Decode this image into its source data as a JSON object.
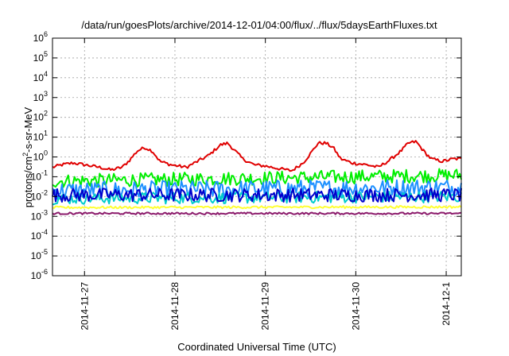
{
  "chart_data": {
    "type": "line",
    "title": "/data/run/goesPlots/archive/2014-12-01/04:00/flux/../flux/5daysEarthFluxes.txt",
    "xlabel": "Coordinated Universal Time (UTC)",
    "ylabel_parts": {
      "base": "protons/cm",
      "exp": "2",
      "rest": "-s-sr-MeV"
    },
    "yscale": "log",
    "ylim_exp": [
      -6,
      6
    ],
    "y_ticks": [
      {
        "base": "10",
        "exp": "-6"
      },
      {
        "base": "10",
        "exp": "-5"
      },
      {
        "base": "10",
        "exp": "-4"
      },
      {
        "base": "10",
        "exp": "-3"
      },
      {
        "base": "10",
        "exp": "-2"
      },
      {
        "base": "10",
        "exp": "-1"
      },
      {
        "base": "10",
        "exp": "0"
      },
      {
        "base": "10",
        "exp": "1"
      },
      {
        "base": "10",
        "exp": "2"
      },
      {
        "base": "10",
        "exp": "3"
      },
      {
        "base": "10",
        "exp": "4"
      },
      {
        "base": "10",
        "exp": "5"
      },
      {
        "base": "10",
        "exp": "6"
      }
    ],
    "x_range": [
      "2014-11-26T15:30",
      "2014-12-01T04:00"
    ],
    "x_ticks": [
      {
        "label": "2014-11-27",
        "value": "2014-11-27T00:00"
      },
      {
        "label": "2014-11-28",
        "value": "2014-11-28T00:00"
      },
      {
        "label": "2014-11-29",
        "value": "2014-11-29T00:00"
      },
      {
        "label": "2014-11-30",
        "value": "2014-11-30T00:00"
      },
      {
        "label": "2014-12-1",
        "value": "2014-12-01T00:00"
      }
    ],
    "grid": true,
    "series": [
      {
        "color": "#e00000",
        "base": [
          [
            "2014-11-26T15:30",
            0.3
          ],
          [
            "2014-11-26T18:00",
            0.4
          ],
          [
            "2014-11-26T21:00",
            0.5
          ],
          [
            "2014-11-27T00:00",
            0.4
          ],
          [
            "2014-11-27T04:00",
            0.3
          ],
          [
            "2014-11-27T07:00",
            0.22
          ],
          [
            "2014-11-27T10:00",
            0.3
          ],
          [
            "2014-11-27T12:00",
            0.7
          ],
          [
            "2014-11-27T14:00",
            2.0
          ],
          [
            "2014-11-27T16:00",
            3.0
          ],
          [
            "2014-11-27T18:00",
            2.0
          ],
          [
            "2014-11-27T20:00",
            0.6
          ],
          [
            "2014-11-27T23:00",
            0.4
          ],
          [
            "2014-11-28T03:00",
            0.3
          ],
          [
            "2014-11-28T06:00",
            0.6
          ],
          [
            "2014-11-28T09:00",
            1.2
          ],
          [
            "2014-11-28T12:00",
            4.0
          ],
          [
            "2014-11-28T14:00",
            5.0
          ],
          [
            "2014-11-28T16:00",
            2.0
          ],
          [
            "2014-11-28T18:00",
            0.8
          ],
          [
            "2014-11-28T21:00",
            0.4
          ],
          [
            "2014-11-29T00:00",
            0.35
          ],
          [
            "2014-11-29T04:00",
            0.25
          ],
          [
            "2014-11-29T07:00",
            0.2
          ],
          [
            "2014-11-29T10:00",
            0.5
          ],
          [
            "2014-11-29T12:00",
            1.5
          ],
          [
            "2014-11-29T14:00",
            5.0
          ],
          [
            "2014-11-29T16:00",
            5.0
          ],
          [
            "2014-11-29T18:00",
            3.0
          ],
          [
            "2014-11-29T20:00",
            0.8
          ],
          [
            "2014-11-29T23:00",
            0.5
          ],
          [
            "2014-11-30T03:00",
            0.4
          ],
          [
            "2014-11-30T06:00",
            0.3
          ],
          [
            "2014-11-30T09:00",
            0.7
          ],
          [
            "2014-11-30T12:00",
            2.0
          ],
          [
            "2014-11-30T14:00",
            5.0
          ],
          [
            "2014-11-30T16:00",
            6.0
          ],
          [
            "2014-11-30T18:00",
            2.0
          ],
          [
            "2014-11-30T20:00",
            0.8
          ],
          [
            "2014-11-30T23:00",
            0.6
          ],
          [
            "2014-12-01T02:00",
            0.8
          ],
          [
            "2014-12-01T04:00",
            0.8
          ]
        ],
        "jitter": 0.08
      },
      {
        "color": "#00ee00",
        "base": [
          [
            "2014-11-26T15:30",
            0.06
          ],
          [
            "2014-11-28T12:00",
            0.08
          ],
          [
            "2014-12-01T04:00",
            0.12
          ]
        ],
        "jitter": 0.35
      },
      {
        "color": "#1e90ff",
        "base": [
          [
            "2014-11-26T15:30",
            0.02
          ],
          [
            "2014-12-01T04:00",
            0.03
          ]
        ],
        "jitter": 0.45
      },
      {
        "color": "#00cccc",
        "base": [
          [
            "2014-11-26T15:30",
            0.008
          ],
          [
            "2014-12-01T04:00",
            0.01
          ]
        ],
        "jitter": 0.3
      },
      {
        "color": "#0000cc",
        "base": [
          [
            "2014-11-26T15:30",
            0.012
          ],
          [
            "2014-12-01T04:00",
            0.012
          ]
        ],
        "jitter": 0.35
      },
      {
        "color": "#ffff33",
        "base": [
          [
            "2014-11-26T15:30",
            0.0028
          ],
          [
            "2014-12-01T04:00",
            0.003
          ]
        ],
        "jitter": 0.06
      },
      {
        "color": "#8b1a6b",
        "base": [
          [
            "2014-11-26T15:30",
            0.0014
          ],
          [
            "2014-12-01T04:00",
            0.0014
          ]
        ],
        "jitter": 0.05
      }
    ]
  }
}
